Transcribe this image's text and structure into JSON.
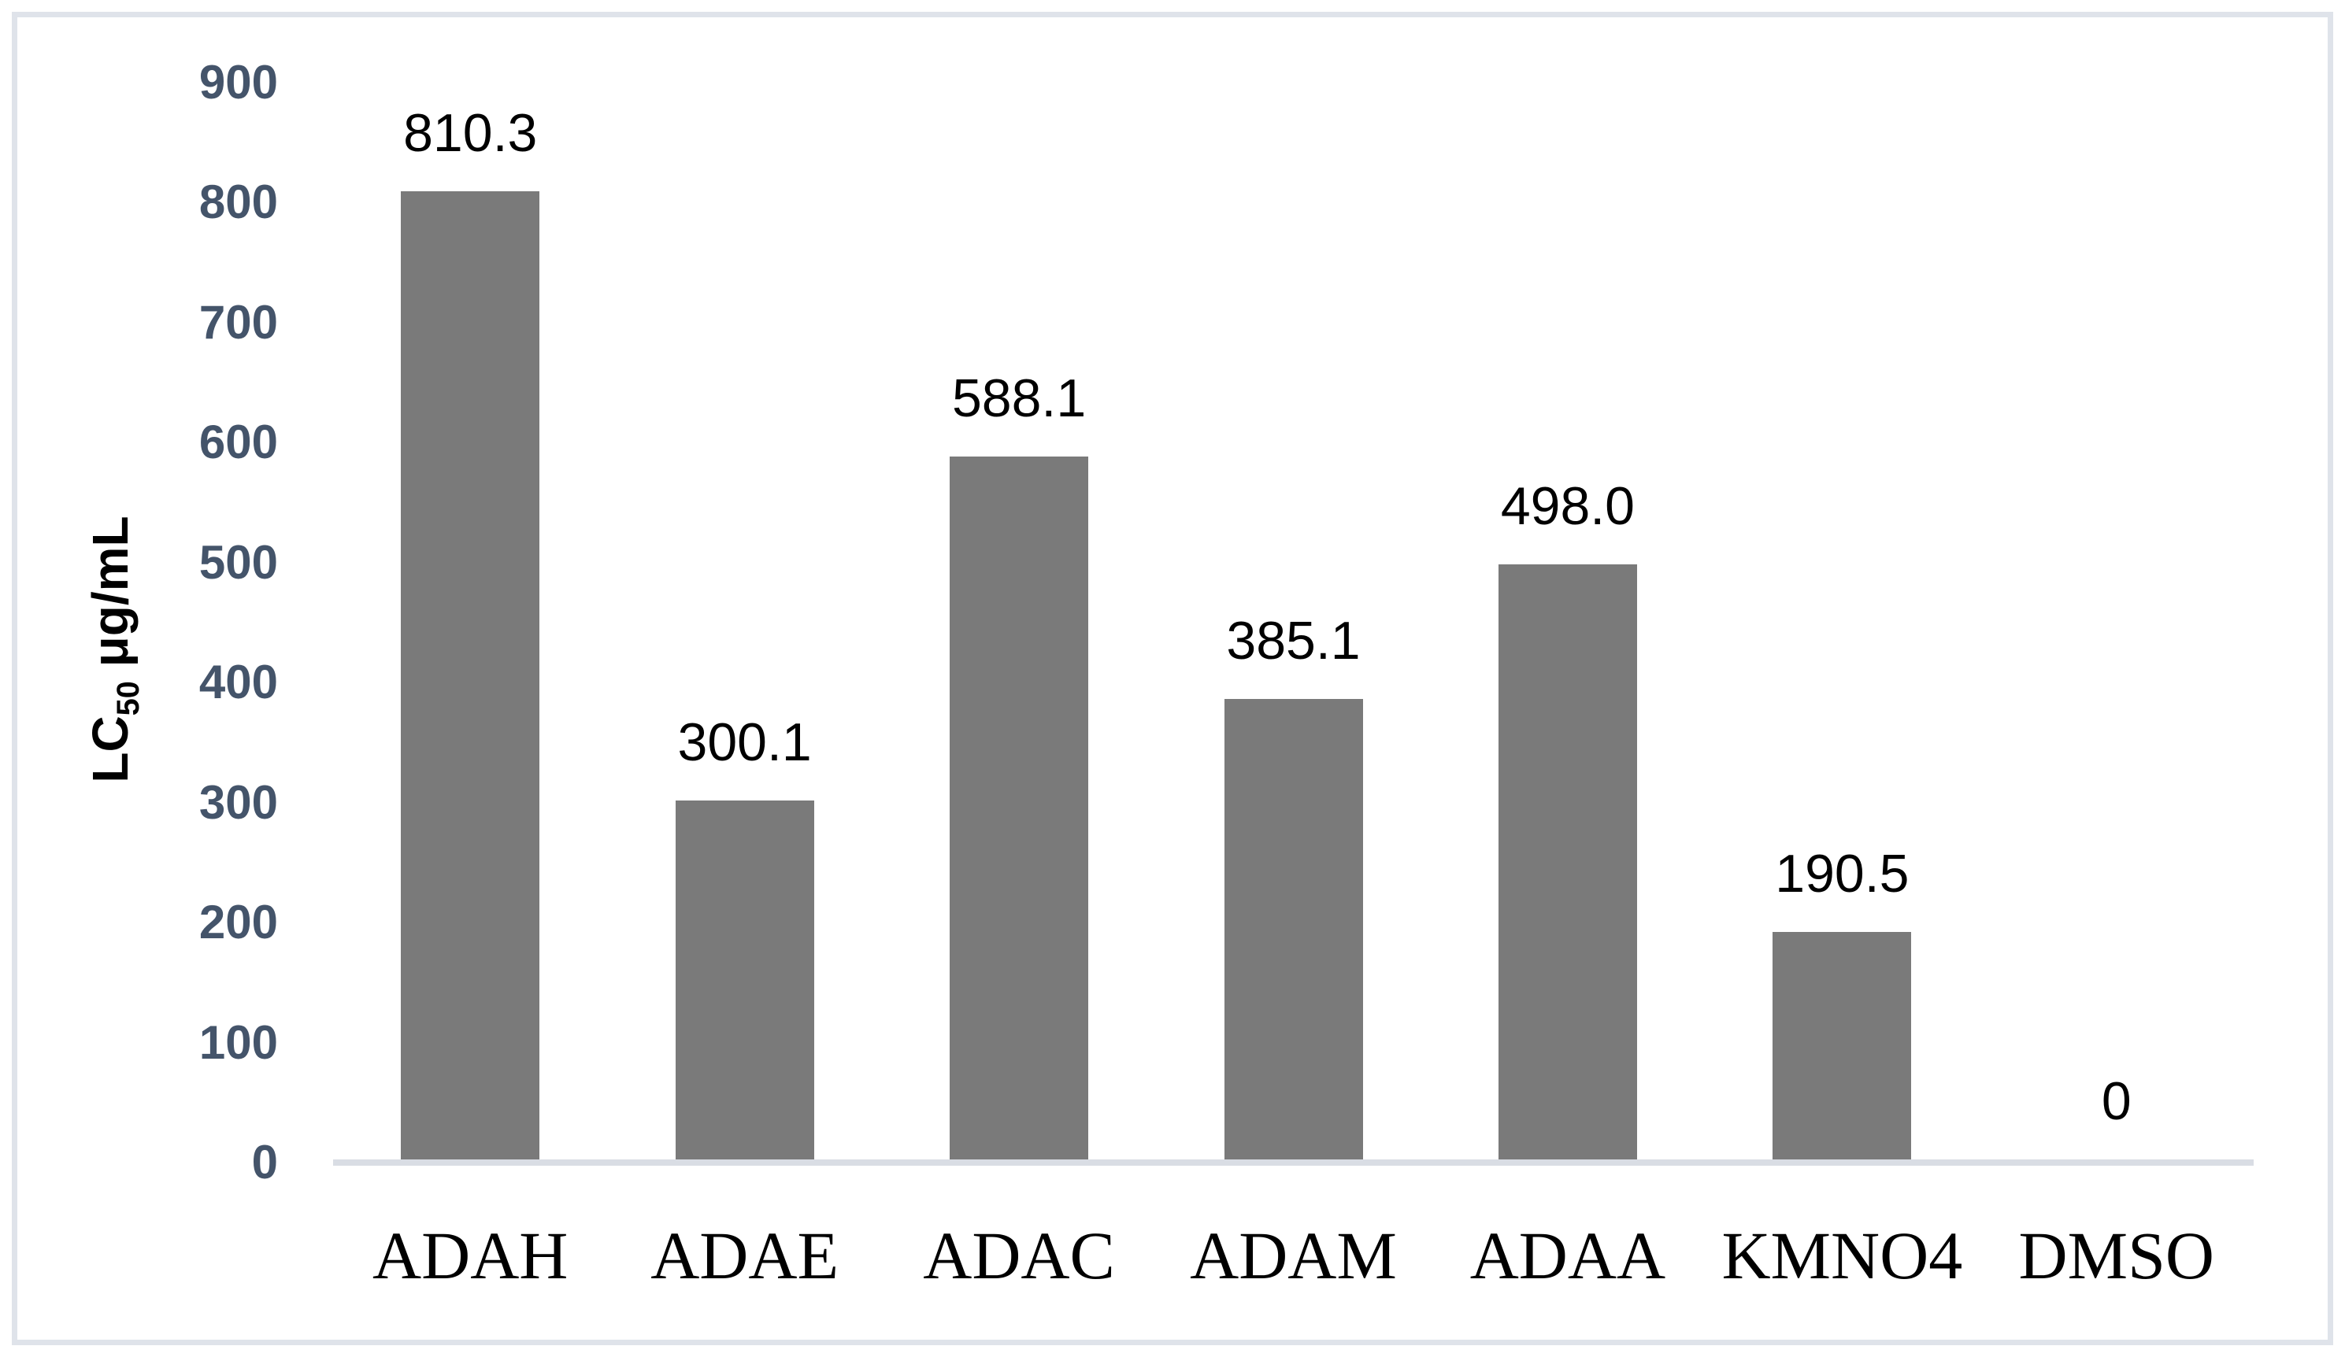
{
  "chart_data": {
    "type": "bar",
    "categories": [
      "ADAH",
      "ADAE",
      "ADAC",
      "ADAM",
      "ADAA",
      "KMNO4",
      "DMSO"
    ],
    "values": [
      810.3,
      300.1,
      588.1,
      385.1,
      498.0,
      190.5,
      0
    ],
    "data_labels": [
      "810.3",
      "300.1",
      "588.1",
      "385.1",
      "498.0",
      "190.5",
      "0"
    ],
    "title": "",
    "xlabel": "",
    "ylabel": "LC50 μg/mL",
    "ylabel_parts": {
      "prefix": "LC",
      "sub": "50",
      "suffix": " μg/mL"
    },
    "ylim": [
      0,
      900
    ],
    "ytick_step": 100,
    "yticks": [
      "0",
      "100",
      "200",
      "300",
      "400",
      "500",
      "600",
      "700",
      "800",
      "900"
    ],
    "grid": false,
    "legend": "none",
    "colors": {
      "bar_fill": "#7a7a7a",
      "y_tick_label": "#44546a",
      "data_label": "#000000",
      "category_label": "#000000",
      "axis_line": "#d9dde4",
      "frame_border": "#dfe3ea",
      "background": "#ffffff"
    }
  }
}
